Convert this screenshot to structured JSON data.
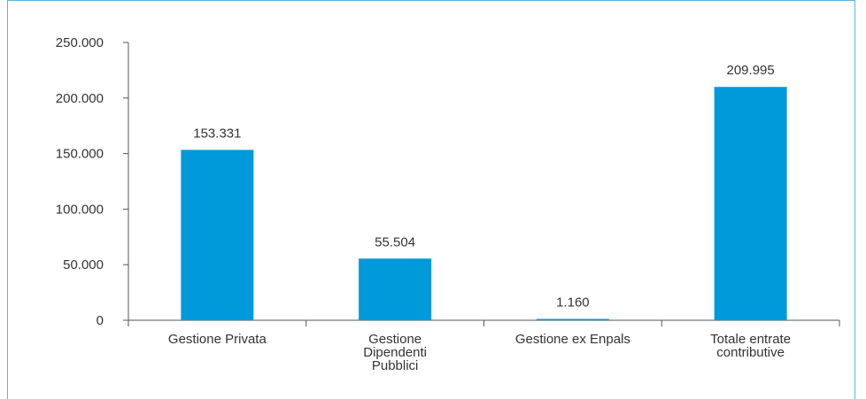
{
  "chart_data": {
    "type": "bar",
    "categories": [
      [
        "Gestione Privata"
      ],
      [
        "Gestione",
        "Dipendenti",
        "Pubblici"
      ],
      [
        "Gestione ex Enpals"
      ],
      [
        "Totale entrate",
        "contributive"
      ]
    ],
    "values": [
      153331,
      55504,
      1160,
      209995
    ],
    "data_labels": [
      "153.331",
      "55.504",
      "1.160",
      "209.995"
    ],
    "y_ticks": [
      {
        "value": 0,
        "label": "0"
      },
      {
        "value": 50000,
        "label": "50.000"
      },
      {
        "value": 100000,
        "label": "100.000"
      },
      {
        "value": 150000,
        "label": "150.000"
      },
      {
        "value": 200000,
        "label": "200.000"
      },
      {
        "value": 250000,
        "label": "250.000"
      }
    ],
    "ylim": [
      0,
      250000
    ],
    "grid": false,
    "legend": "none",
    "bar_color": "#0099da",
    "frame_color": "#5ab3e6"
  }
}
